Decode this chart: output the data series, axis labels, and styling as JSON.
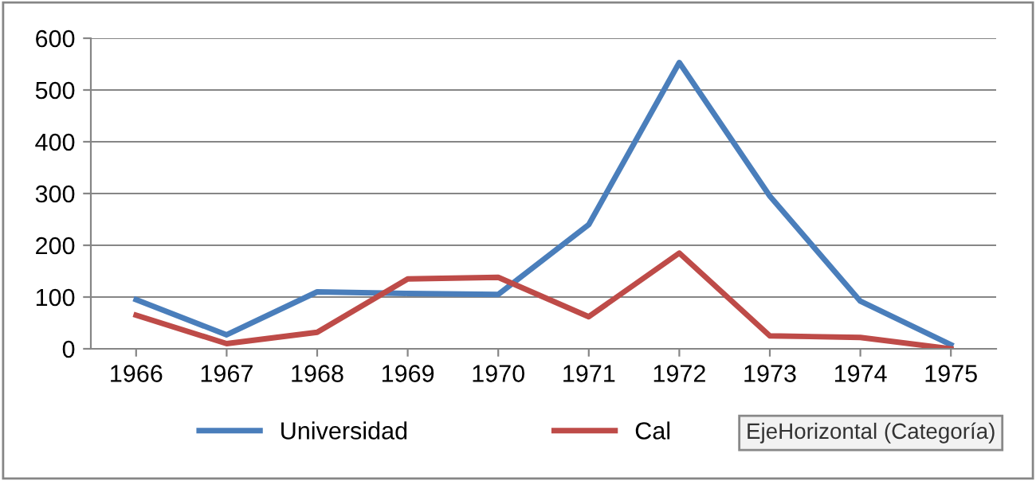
{
  "chart_data": {
    "type": "line",
    "categories": [
      "1966",
      "1967",
      "1968",
      "1969",
      "1970",
      "1971",
      "1972",
      "1973",
      "1974",
      "1975"
    ],
    "series": [
      {
        "name": "Universidad",
        "color": "#4a7ebb",
        "values": [
          95,
          27,
          110,
          107,
          105,
          240,
          553,
          295,
          92,
          8
        ]
      },
      {
        "name": "Cal",
        "color": "#be4b48",
        "values": [
          65,
          10,
          32,
          135,
          138,
          62,
          185,
          25,
          22,
          0
        ]
      }
    ],
    "ylim": [
      0,
      600
    ],
    "yticks": [
      0,
      100,
      200,
      300,
      400,
      500,
      600
    ],
    "grid": "y",
    "legend": "bottom",
    "marker": "none",
    "line_style": "solid",
    "annotations": [
      "EjeHorizontal (Categoría)"
    ]
  }
}
